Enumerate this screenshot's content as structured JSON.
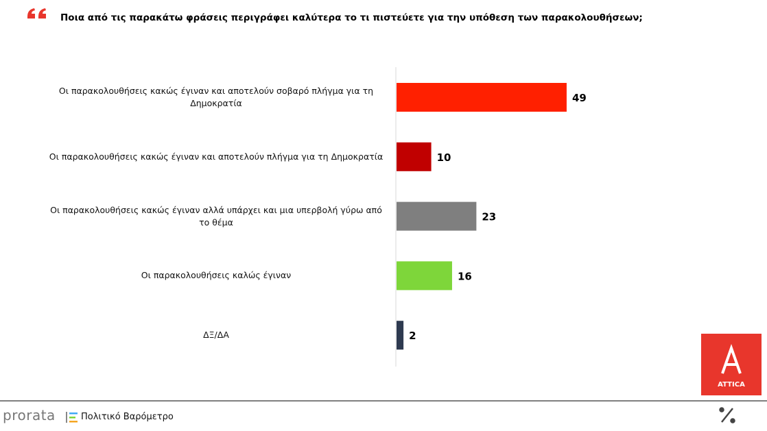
{
  "chart_data": {
    "type": "bar",
    "orientation": "horizontal",
    "title": "Ποια από τις παρακάτω φράσεις περιγράφει καλύτερα το τι πιστεύετε για την υπόθεση των παρακολουθήσεων;",
    "categories": [
      "Οι παρακολουθήσεις κακώς έγιναν και αποτελούν σοβαρό πλήγμα για τη Δημοκρατία",
      "Οι παρακολουθήσεις κακώς έγιναν και αποτελούν πλήγμα για τη Δημοκρατία",
      "Οι παρακολουθήσεις κακώς έγιναν αλλά υπάρχει και μια υπερβολή γύρω από το θέμα",
      "Οι παρακολουθήσεις καλώς έγιναν",
      "ΔΞ/ΔΑ"
    ],
    "values": [
      49,
      10,
      23,
      16,
      2
    ],
    "colors": [
      "#ff2000",
      "#c00000",
      "#7f7f7f",
      "#7ed63a",
      "#2e3a50"
    ]
  },
  "footer": {
    "brand": "prorata",
    "subtitle": "Πολιτικό Βαρόμετρο"
  },
  "logo": "ATTICA"
}
